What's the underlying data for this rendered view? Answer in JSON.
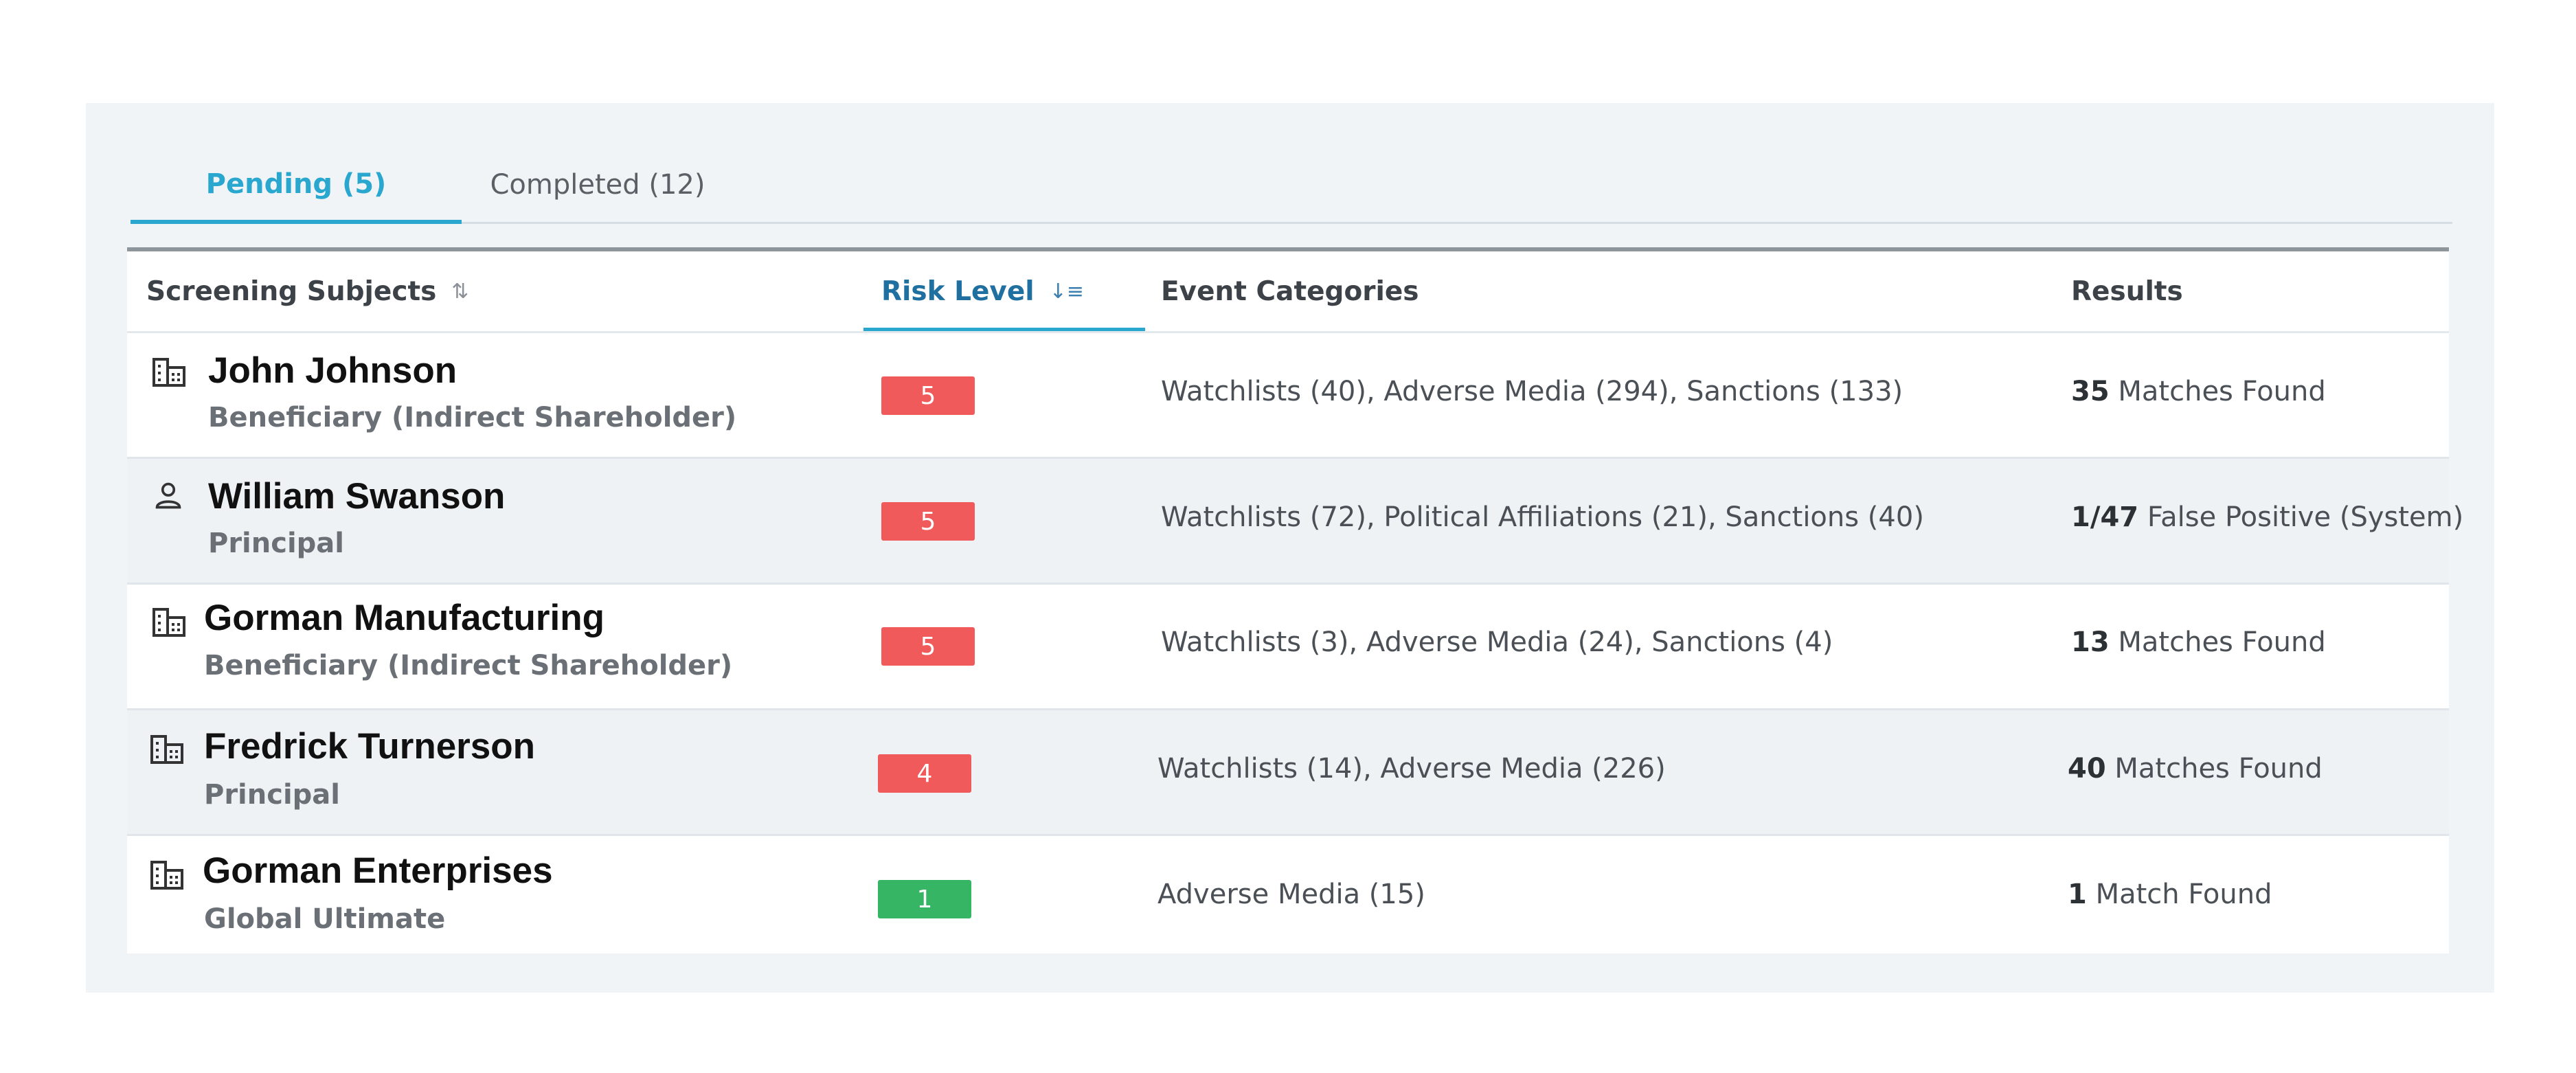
{
  "tabs": [
    {
      "label": "Pending (5)",
      "active": true
    },
    {
      "label": "Completed (12)",
      "active": false
    }
  ],
  "columns": {
    "subjects": "Screening Subjects",
    "risk": "Risk Level",
    "events": "Event Categories",
    "results": "Results"
  },
  "rows": [
    {
      "icon": "building-icon",
      "name": "John Johnson",
      "role": "Beneficiary (Indirect Shareholder)",
      "risk": "5",
      "risk_color": "#f05a5a",
      "events": "Watchlists (40), Adverse Media (294), Sanctions (133)",
      "result_count": "35",
      "result_text": "Matches Found"
    },
    {
      "icon": "person-icon",
      "name": "William Swanson",
      "role": "Principal",
      "risk": "5",
      "risk_color": "#f05a5a",
      "events": "Watchlists (72), Political Affiliations (21), Sanctions (40)",
      "result_count": "1/47",
      "result_text": "False Positive (System)"
    },
    {
      "icon": "building-icon",
      "name": "Gorman Manufacturing",
      "role": "Beneficiary (Indirect Shareholder)",
      "risk": "5",
      "risk_color": "#f05a5a",
      "events": "Watchlists (3), Adverse Media (24), Sanctions (4)",
      "result_count": "13",
      "result_text": "Matches Found"
    },
    {
      "icon": "building-icon",
      "name": "Fredrick Turnerson",
      "role": "Principal",
      "risk": "4",
      "risk_color": "#f05a5a",
      "events": "Watchlists (14), Adverse Media (226)",
      "result_count": "40",
      "result_text": "Matches Found"
    },
    {
      "icon": "building-icon",
      "name": "Gorman Enterprises",
      "role": "Global Ultimate",
      "risk": "1",
      "risk_color": "#36b565",
      "events": "Adverse Media (15)",
      "result_count": "1",
      "result_text": "Match Found"
    }
  ]
}
